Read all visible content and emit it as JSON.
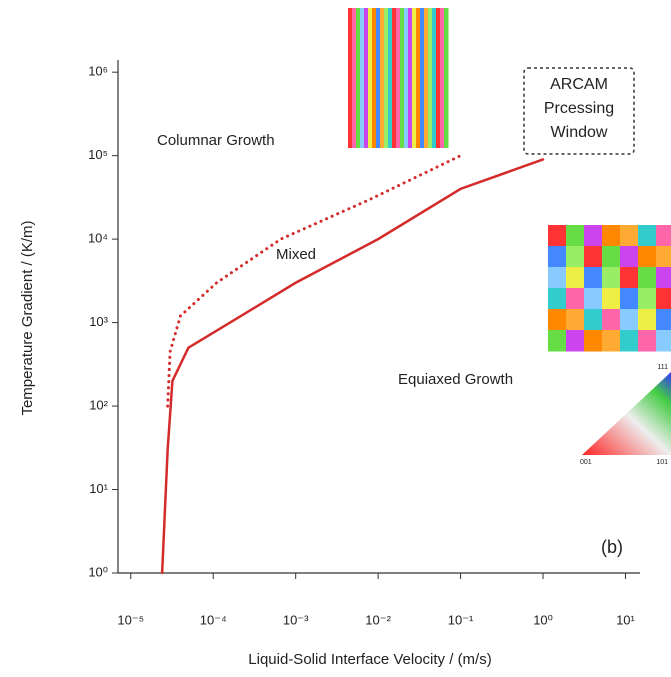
{
  "chart_data": {
    "type": "line",
    "xlabel": "Liquid-Solid Interface Velocity / (m/s)",
    "ylabel": "Temperature Gradient / (K/m)",
    "xscale": "log",
    "yscale": "log",
    "xlim": [
      7e-06,
      15
    ],
    "ylim": [
      1,
      1400000
    ],
    "xticks": [
      {
        "value": 1e-05,
        "label": "10⁻⁵"
      },
      {
        "value": 0.0001,
        "label": "10⁻⁴"
      },
      {
        "value": 0.001,
        "label": "10⁻³"
      },
      {
        "value": 0.01,
        "label": "10⁻²"
      },
      {
        "value": 0.1,
        "label": "10⁻¹"
      },
      {
        "value": 1,
        "label": "10⁰"
      },
      {
        "value": 10,
        "label": "10¹"
      }
    ],
    "yticks": [
      {
        "value": 1,
        "label": "10⁰"
      },
      {
        "value": 10,
        "label": "10¹"
      },
      {
        "value": 100,
        "label": "10²"
      },
      {
        "value": 1000,
        "label": "10³"
      },
      {
        "value": 10000,
        "label": "10⁴"
      },
      {
        "value": 100000,
        "label": "10⁵"
      },
      {
        "value": 1000000,
        "label": "10⁶"
      }
    ],
    "series": [
      {
        "color": "#d42a2a",
        "style": "solid",
        "x": [
          2.4e-05,
          2.8e-05,
          3.2e-05,
          5e-05,
          0.00016,
          0.001,
          0.01,
          0.1,
          1
        ],
        "values": [
          1,
          30,
          200,
          500,
          1000,
          3000,
          10000,
          40000,
          90000
        ]
      },
      {
        "color": "#d42a2a",
        "style": "dotted",
        "x": [
          2.8e-05,
          3e-05,
          4e-05,
          0.00011,
          0.00066,
          0.008,
          0.1
        ],
        "values": [
          100,
          450,
          1200,
          3000,
          10000,
          30000,
          100000
        ]
      }
    ],
    "annotations": [
      "Columnar Growth",
      "Mixed",
      "Equiaxed Growth",
      "(b)"
    ],
    "processing_window": [
      "ARCAM",
      "Prcessing",
      "Window"
    ],
    "ipf_labels": [
      "001",
      "101",
      "111"
    ]
  }
}
